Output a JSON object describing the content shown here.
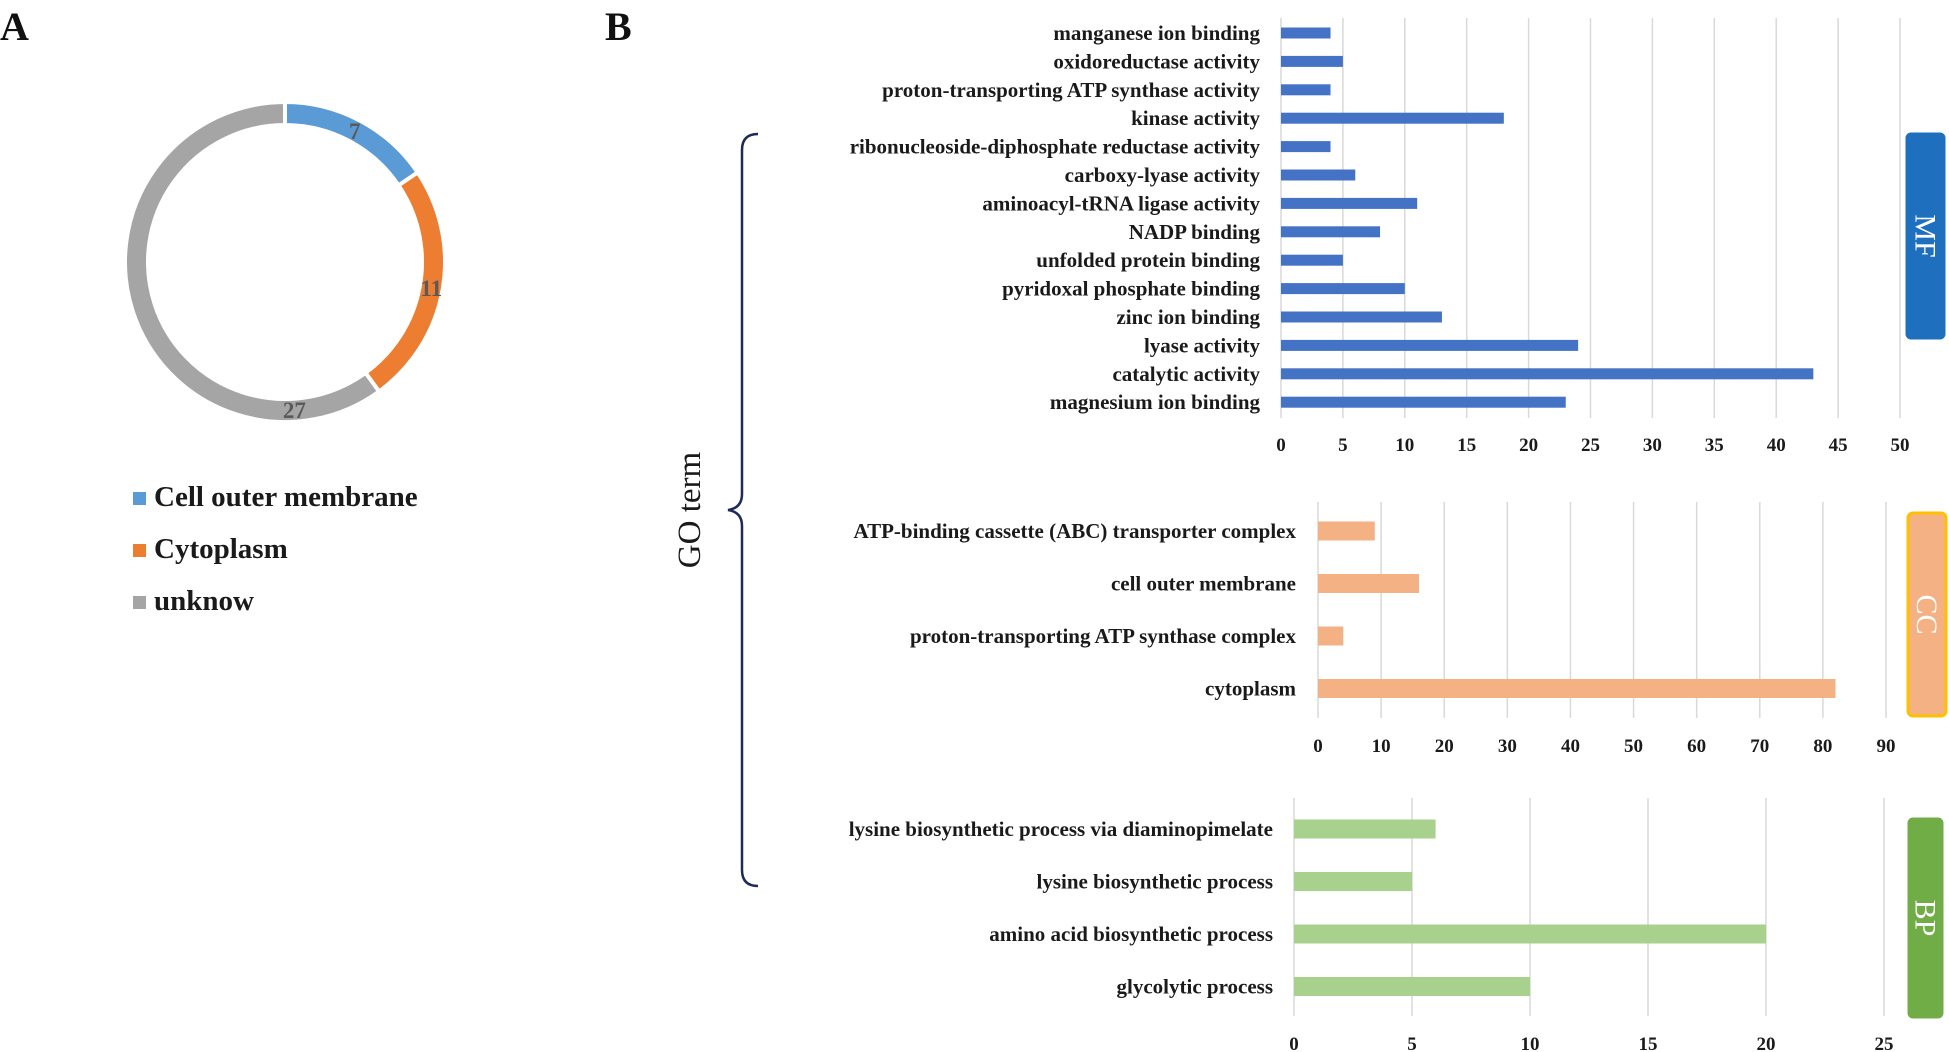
{
  "panel_labels": {
    "a": "A",
    "b": "B"
  },
  "colors": {
    "cell_outer_membrane": "#5b9bd5",
    "cytoplasm": "#ed7d31",
    "unknow": "#a5a5a5",
    "mf_bar": "#4472c4",
    "cc_bar": "#f4b183",
    "bp_bar": "#a9d18e",
    "mf_tag": "#1f6fbf",
    "cc_tag": "#f4b183",
    "cc_tag_border": "#ffc000",
    "bp_tag": "#70ad47",
    "bracket": "#1f2a5a"
  },
  "y_axis_title": "GO term",
  "chart_data": [
    {
      "id": "donut",
      "type": "pie",
      "subtype": "donut",
      "title": "",
      "slices": [
        {
          "label": "Cell outer membrane",
          "value": 7
        },
        {
          "label": "Cytoplasm",
          "value": 11
        },
        {
          "label": "unknow",
          "value": 27
        }
      ],
      "legend_position": "bottom"
    },
    {
      "id": "mf",
      "type": "bar",
      "orientation": "horizontal",
      "group_tag": "MF",
      "categories": [
        "manganese ion binding",
        "oxidoreductase activity",
        "proton-transporting ATP synthase activity",
        "kinase activity",
        "ribonucleoside-diphosphate reductase activity",
        "carboxy-lyase activity",
        "aminoacyl-tRNA ligase activity",
        "NADP binding",
        "unfolded protein binding",
        "pyridoxal phosphate binding",
        "zinc ion binding",
        "lyase activity",
        "catalytic activity",
        "magnesium ion binding"
      ],
      "values": [
        4,
        5,
        4,
        18,
        4,
        6,
        11,
        8,
        5,
        10,
        13,
        24,
        43,
        23
      ],
      "xlim": [
        0,
        50
      ],
      "xticks": [
        0,
        5,
        10,
        15,
        20,
        25,
        30,
        35,
        40,
        45,
        50
      ],
      "grid": true
    },
    {
      "id": "cc",
      "type": "bar",
      "orientation": "horizontal",
      "group_tag": "CC",
      "categories": [
        "ATP-binding cassette (ABC) transporter complex",
        "cell outer membrane",
        "proton-transporting ATP synthase complex",
        "cytoplasm"
      ],
      "values": [
        9,
        16,
        4,
        82
      ],
      "xlim": [
        0,
        90
      ],
      "xticks": [
        0,
        10,
        20,
        30,
        40,
        50,
        60,
        70,
        80,
        90
      ],
      "grid": true
    },
    {
      "id": "bp",
      "type": "bar",
      "orientation": "horizontal",
      "group_tag": "BP",
      "categories": [
        "lysine biosynthetic process via diaminopimelate",
        "lysine biosynthetic process",
        "amino acid biosynthetic process",
        "glycolytic process"
      ],
      "values": [
        6,
        5,
        20,
        10
      ],
      "xlim": [
        0,
        25
      ],
      "xticks": [
        0,
        5,
        10,
        15,
        20,
        25
      ],
      "grid": true
    }
  ]
}
